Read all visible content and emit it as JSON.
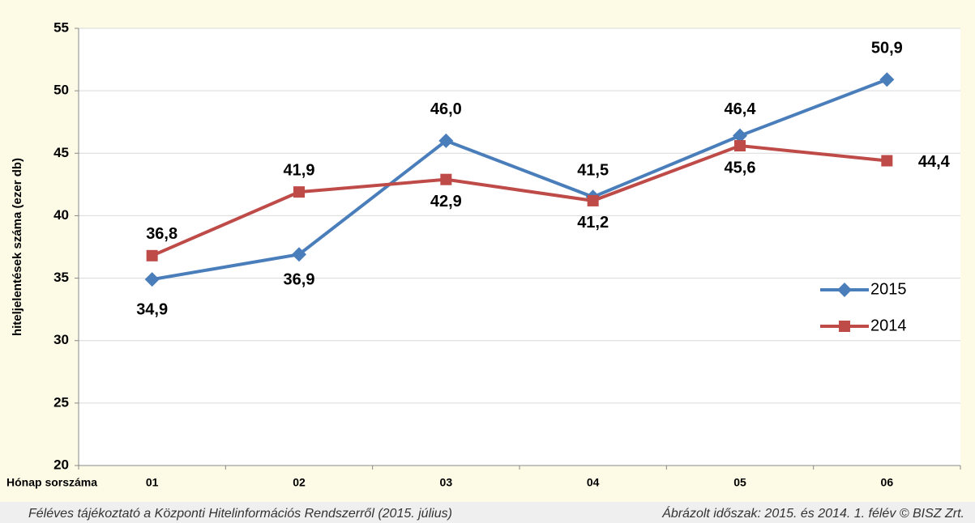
{
  "chart_data": {
    "type": "line",
    "y_label": "hiteljelentések száma (ezer db)",
    "x_label": "Hónap sorszáma",
    "categories": [
      "01",
      "02",
      "03",
      "04",
      "05",
      "06"
    ],
    "series": [
      {
        "name": "2015",
        "color": "#4a7ebb",
        "marker": "diamond",
        "values": [
          34.9,
          36.9,
          46.0,
          41.5,
          46.4,
          50.9
        ],
        "value_labels": [
          "34,9",
          "36,9",
          "46,0",
          "41,5",
          "46,4",
          "50,9"
        ]
      },
      {
        "name": "2014",
        "color": "#be4b48",
        "marker": "square",
        "values": [
          36.8,
          41.9,
          42.9,
          41.2,
          45.6,
          44.4
        ],
        "value_labels": [
          "36,8",
          "41,9",
          "42,9",
          "41,2",
          "45,6",
          "44,4"
        ]
      }
    ],
    "ylim": [
      20,
      55
    ],
    "yticks": [
      20,
      25,
      30,
      35,
      40,
      45,
      50,
      55
    ],
    "grid": true,
    "legend": "right"
  },
  "footer": {
    "left": "Féléves tájékoztató a Központi Hitelinformációs Rendszerről (2015. július)",
    "right": "Ábrázolt időszak: 2015. és 2014. 1. félév © BISZ Zrt."
  }
}
